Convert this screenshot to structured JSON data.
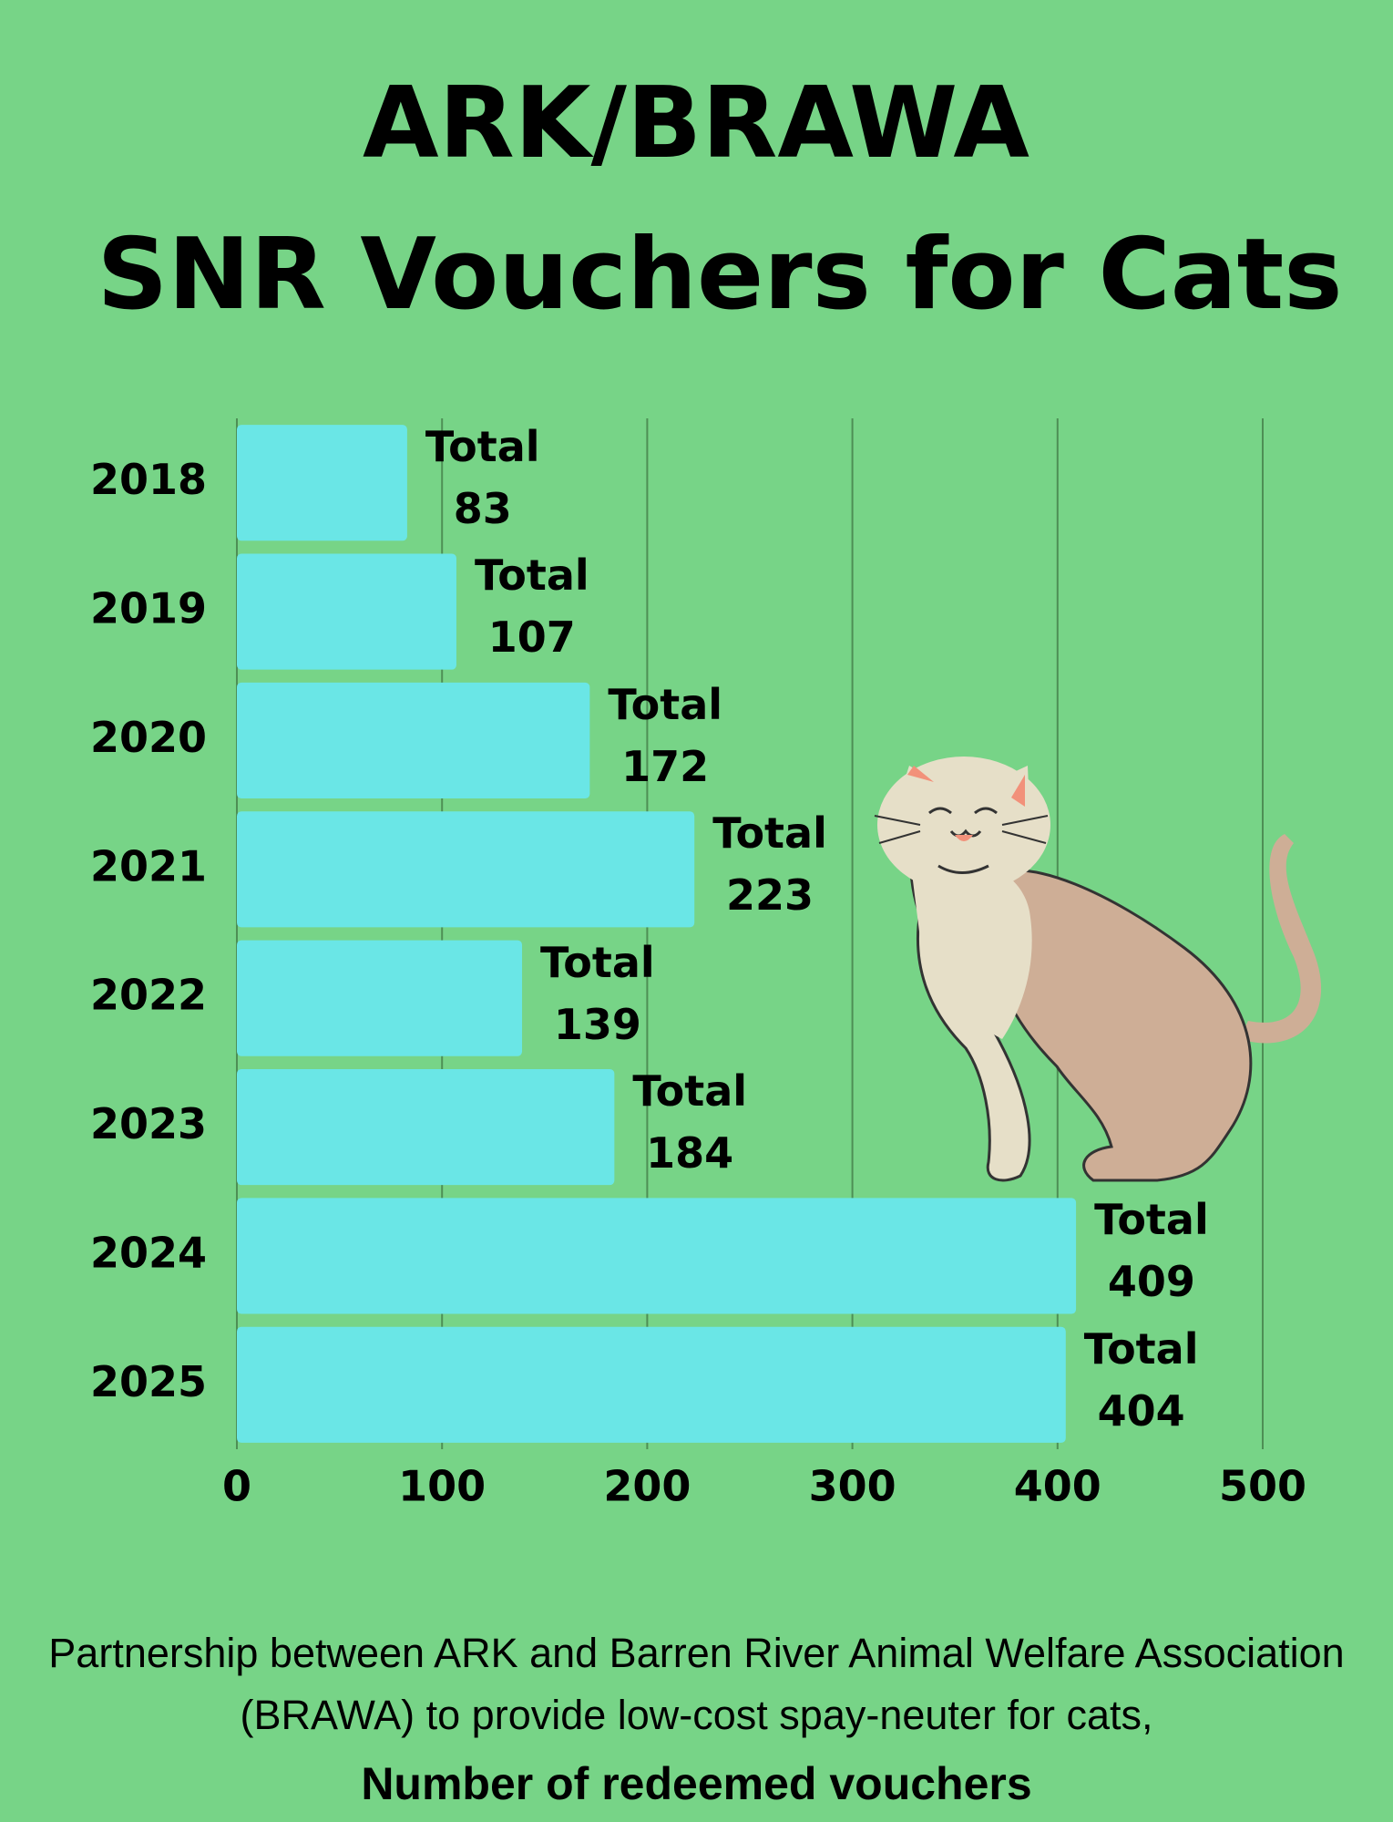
{
  "chart_data": {
    "type": "bar",
    "orientation": "horizontal",
    "title": [
      "ARK/BRAWA",
      "SNR Vouchers for Cats"
    ],
    "categories": [
      "2018",
      "2019",
      "2020",
      "2021",
      "2022",
      "2023",
      "2024",
      "2025"
    ],
    "values": [
      83,
      107,
      172,
      223,
      139,
      184,
      409,
      404
    ],
    "value_labels": [
      "Total 83",
      "Total 107",
      "Total 172",
      "Total 223",
      "Total 139",
      "Total 184",
      "Total 409",
      "Total 404"
    ],
    "color": "#6ae6e6",
    "xlim": [
      0,
      500
    ],
    "xticks": [
      0,
      100,
      200,
      300,
      400,
      500
    ],
    "grid": true,
    "caption": "Partnership between ARK and Barren River Animal Welfare Association (BRAWA) to provide low-cost spay-neuter for cats,",
    "x_label": "Number of redeemed vouchers"
  }
}
